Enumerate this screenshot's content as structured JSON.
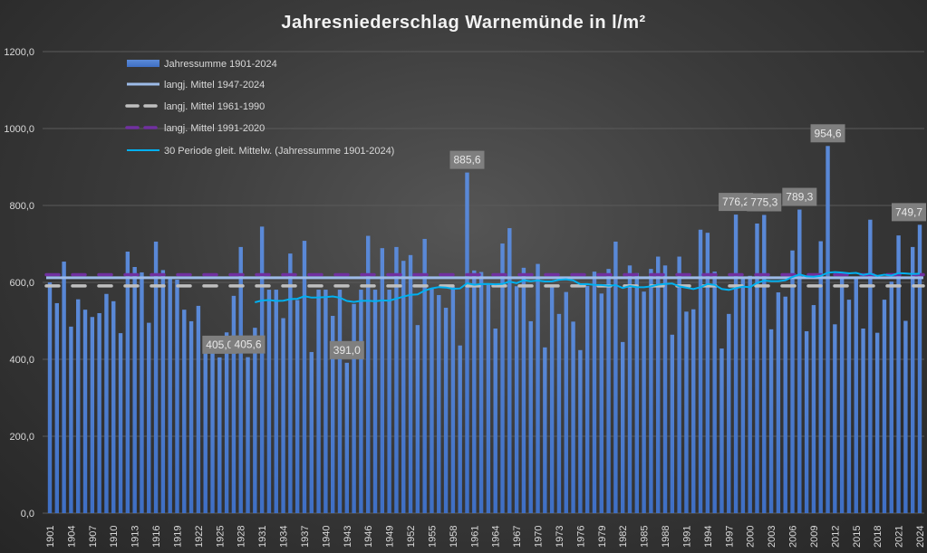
{
  "chart_data": {
    "type": "bar",
    "title": "Jahresniederschlag Warnemünde in l/m²",
    "xlabel": "",
    "ylabel": "",
    "ylim": [
      0,
      1200
    ],
    "yticks": [
      "0,0",
      "200,0",
      "400,0",
      "600,0",
      "800,0",
      "1000,0",
      "1200,0"
    ],
    "grid": true,
    "legend_position": "top-left",
    "x_start": 1901,
    "x_end": 2024,
    "xtick_step": 3,
    "series": [
      {
        "name": "Jahressumme 1901-2024",
        "type": "bar",
        "color": "#4a7bd0",
        "values": [
          600,
          546,
          654,
          485,
          556,
          529,
          510,
          520,
          570,
          551,
          468,
          680,
          640,
          626,
          495,
          706,
          632,
          615,
          607,
          529,
          499,
          539,
          453,
          417,
          405.0,
          470,
          565,
          692,
          405.6,
          482,
          745,
          581,
          581,
          507,
          675,
          554,
          708,
          419,
          581,
          581,
          513,
          581,
          391.0,
          544,
          581,
          721,
          581,
          689,
          581,
          692,
          656,
          671,
          489,
          713,
          585,
          567,
          534,
          588,
          436,
          885.6,
          631,
          627,
          597,
          480,
          701,
          741,
          590,
          638,
          499,
          648,
          431,
          593,
          518,
          575,
          498,
          424,
          591,
          628,
          571,
          635,
          706,
          445,
          644,
          624,
          576,
          635,
          667,
          644,
          464,
          667,
          524,
          530,
          737,
          729,
          628,
          428,
          518,
          776.2,
          613,
          617,
          753,
          775.3,
          478,
          574,
          563,
          683,
          789.3,
          473,
          541,
          707,
          954.6,
          491,
          613,
          555,
          613,
          480,
          763,
          469,
          555,
          602,
          722,
          500,
          692,
          749.7
        ]
      },
      {
        "name": "langj. Mittel 1947-2024",
        "type": "line",
        "color": "#9dbbe8",
        "value": 612
      },
      {
        "name": "langj. Mittel 1961-1990",
        "type": "dashed",
        "color": "#bfbfbf",
        "value": 591
      },
      {
        "name": "langj. Mittel 1991-2020",
        "type": "dashed",
        "color": "#7030a0",
        "value": 620
      },
      {
        "name": "30 Periode gleit. Mittelw. (Jahressumme 1901-2024)",
        "type": "moving_average",
        "color": "#00b0f0",
        "window": 30
      }
    ],
    "data_labels": [
      {
        "year": 1925,
        "text": "405,0"
      },
      {
        "year": 1929,
        "text": "405,6"
      },
      {
        "year": 1943,
        "text": "391,0"
      },
      {
        "year": 1960,
        "text": "885,6"
      },
      {
        "year": 1998,
        "text": "776,2"
      },
      {
        "year": 2002,
        "text": "775,3"
      },
      {
        "year": 2007,
        "text": "789,3"
      },
      {
        "year": 2011,
        "text": "954,6"
      },
      {
        "year": 2024,
        "text": "749,7"
      }
    ]
  }
}
